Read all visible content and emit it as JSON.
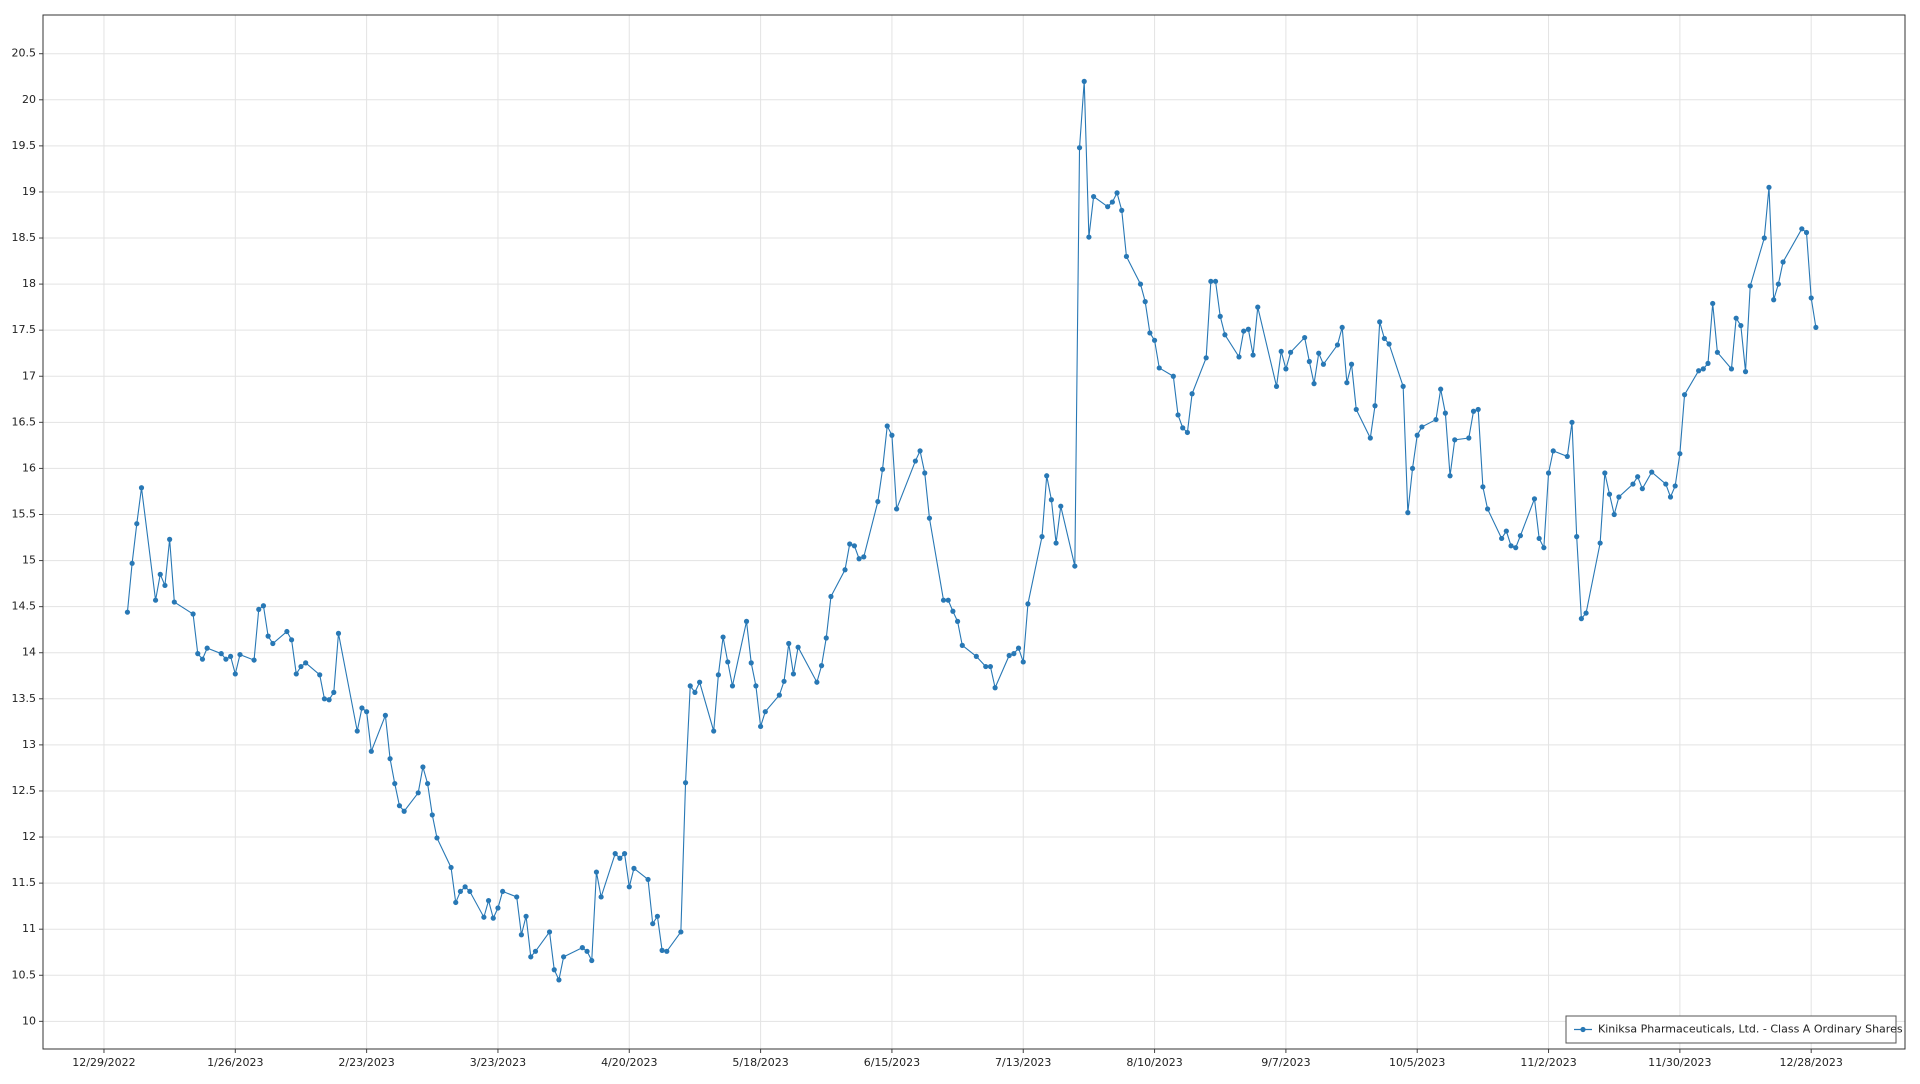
{
  "chart_data": {
    "type": "line",
    "x": [
      "1/3/2023",
      "1/4/2023",
      "1/5/2023",
      "1/6/2023",
      "1/9/2023",
      "1/10/2023",
      "1/11/2023",
      "1/12/2023",
      "1/13/2023",
      "1/17/2023",
      "1/18/2023",
      "1/19/2023",
      "1/20/2023",
      "1/23/2023",
      "1/24/2023",
      "1/25/2023",
      "1/26/2023",
      "1/27/2023",
      "1/30/2023",
      "1/31/2023",
      "2/1/2023",
      "2/2/2023",
      "2/3/2023",
      "2/6/2023",
      "2/7/2023",
      "2/8/2023",
      "2/9/2023",
      "2/10/2023",
      "2/13/2023",
      "2/14/2023",
      "2/15/2023",
      "2/16/2023",
      "2/17/2023",
      "2/21/2023",
      "2/22/2023",
      "2/23/2023",
      "2/24/2023",
      "2/27/2023",
      "2/28/2023",
      "3/1/2023",
      "3/2/2023",
      "3/3/2023",
      "3/6/2023",
      "3/7/2023",
      "3/8/2023",
      "3/9/2023",
      "3/10/2023",
      "3/13/2023",
      "3/14/2023",
      "3/15/2023",
      "3/16/2023",
      "3/17/2023",
      "3/20/2023",
      "3/21/2023",
      "3/22/2023",
      "3/23/2023",
      "3/24/2023",
      "3/27/2023",
      "3/28/2023",
      "3/29/2023",
      "3/30/2023",
      "3/31/2023",
      "4/3/2023",
      "4/4/2023",
      "4/5/2023",
      "4/6/2023",
      "4/10/2023",
      "4/11/2023",
      "4/12/2023",
      "4/13/2023",
      "4/14/2023",
      "4/17/2023",
      "4/18/2023",
      "4/19/2023",
      "4/20/2023",
      "4/21/2023",
      "4/24/2023",
      "4/25/2023",
      "4/26/2023",
      "4/27/2023",
      "4/28/2023",
      "5/1/2023",
      "5/2/2023",
      "5/3/2023",
      "5/4/2023",
      "5/5/2023",
      "5/8/2023",
      "5/9/2023",
      "5/10/2023",
      "5/11/2023",
      "5/12/2023",
      "5/15/2023",
      "5/16/2023",
      "5/17/2023",
      "5/18/2023",
      "5/19/2023",
      "5/22/2023",
      "5/23/2023",
      "5/24/2023",
      "5/25/2023",
      "5/26/2023",
      "5/30/2023",
      "5/31/2023",
      "6/1/2023",
      "6/2/2023",
      "6/5/2023",
      "6/6/2023",
      "6/7/2023",
      "6/8/2023",
      "6/9/2023",
      "6/12/2023",
      "6/13/2023",
      "6/14/2023",
      "6/15/2023",
      "6/16/2023",
      "6/20/2023",
      "6/21/2023",
      "6/22/2023",
      "6/23/2023",
      "6/26/2023",
      "6/27/2023",
      "6/28/2023",
      "6/29/2023",
      "6/30/2023",
      "7/3/2023",
      "7/5/2023",
      "7/6/2023",
      "7/7/2023",
      "7/10/2023",
      "7/11/2023",
      "7/12/2023",
      "7/13/2023",
      "7/14/2023",
      "7/17/2023",
      "7/18/2023",
      "7/19/2023",
      "7/20/2023",
      "7/21/2023",
      "7/24/2023",
      "7/25/2023",
      "7/26/2023",
      "7/27/2023",
      "7/28/2023",
      "7/31/2023",
      "8/1/2023",
      "8/2/2023",
      "8/3/2023",
      "8/4/2023",
      "8/7/2023",
      "8/8/2023",
      "8/9/2023",
      "8/10/2023",
      "8/11/2023",
      "8/14/2023",
      "8/15/2023",
      "8/16/2023",
      "8/17/2023",
      "8/18/2023",
      "8/21/2023",
      "8/22/2023",
      "8/23/2023",
      "8/24/2023",
      "8/25/2023",
      "8/28/2023",
      "8/29/2023",
      "8/30/2023",
      "8/31/2023",
      "9/1/2023",
      "9/5/2023",
      "9/6/2023",
      "9/7/2023",
      "9/8/2023",
      "9/11/2023",
      "9/12/2023",
      "9/13/2023",
      "9/14/2023",
      "9/15/2023",
      "9/18/2023",
      "9/19/2023",
      "9/20/2023",
      "9/21/2023",
      "9/22/2023",
      "9/25/2023",
      "9/26/2023",
      "9/27/2023",
      "9/28/2023",
      "9/29/2023",
      "10/2/2023",
      "10/3/2023",
      "10/4/2023",
      "10/5/2023",
      "10/6/2023",
      "10/9/2023",
      "10/10/2023",
      "10/11/2023",
      "10/12/2023",
      "10/13/2023",
      "10/16/2023",
      "10/17/2023",
      "10/18/2023",
      "10/19/2023",
      "10/20/2023",
      "10/23/2023",
      "10/24/2023",
      "10/25/2023",
      "10/26/2023",
      "10/27/2023",
      "10/30/2023",
      "10/31/2023",
      "11/1/2023",
      "11/2/2023",
      "11/3/2023",
      "11/6/2023",
      "11/7/2023",
      "11/8/2023",
      "11/9/2023",
      "11/10/2023",
      "11/13/2023",
      "11/14/2023",
      "11/15/2023",
      "11/16/2023",
      "11/17/2023",
      "11/20/2023",
      "11/21/2023",
      "11/22/2023",
      "11/24/2023",
      "11/27/2023",
      "11/28/2023",
      "11/29/2023",
      "11/30/2023",
      "12/1/2023",
      "12/4/2023",
      "12/5/2023",
      "12/6/2023",
      "12/7/2023",
      "12/8/2023",
      "12/11/2023",
      "12/12/2023",
      "12/13/2023",
      "12/14/2023",
      "12/15/2023",
      "12/18/2023",
      "12/19/2023",
      "12/20/2023",
      "12/21/2023",
      "12/22/2023",
      "12/26/2023",
      "12/27/2023",
      "12/28/2023",
      "12/29/2023"
    ],
    "series": [
      {
        "name": "Kiniksa Pharmaceuticals, Ltd. - Class A Ordinary Shares",
        "color": "#2878b5",
        "values": [
          14.44,
          14.97,
          15.4,
          15.79,
          14.57,
          14.85,
          14.73,
          15.23,
          14.55,
          14.42,
          13.99,
          13.93,
          14.05,
          13.99,
          13.93,
          13.96,
          13.77,
          13.98,
          13.92,
          14.47,
          14.51,
          14.18,
          14.1,
          14.23,
          14.14,
          13.77,
          13.85,
          13.89,
          13.76,
          13.5,
          13.49,
          13.57,
          14.21,
          13.15,
          13.4,
          13.36,
          12.93,
          13.32,
          12.85,
          12.58,
          12.34,
          12.28,
          12.48,
          12.76,
          12.58,
          12.24,
          11.99,
          11.67,
          11.29,
          11.41,
          11.46,
          11.41,
          11.13,
          11.31,
          11.12,
          11.23,
          11.41,
          11.35,
          10.94,
          11.14,
          10.7,
          10.76,
          10.97,
          10.56,
          10.45,
          10.7,
          10.8,
          10.76,
          10.66,
          11.62,
          11.35,
          11.82,
          11.77,
          11.82,
          11.46,
          11.66,
          11.54,
          11.06,
          11.14,
          10.77,
          10.76,
          10.97,
          12.59,
          13.64,
          13.57,
          13.68,
          13.15,
          13.76,
          14.17,
          13.9,
          13.64,
          14.34,
          13.89,
          13.64,
          13.2,
          13.36,
          13.54,
          13.69,
          14.1,
          13.77,
          14.06,
          13.68,
          13.86,
          14.16,
          14.61,
          14.9,
          15.18,
          15.16,
          15.02,
          15.04,
          15.64,
          15.99,
          16.46,
          16.36,
          15.56,
          16.08,
          16.19,
          15.95,
          15.46,
          14.57,
          14.57,
          14.45,
          14.34,
          14.08,
          13.96,
          13.85,
          13.85,
          13.62,
          13.97,
          13.99,
          14.05,
          13.9,
          14.53,
          15.26,
          15.92,
          15.66,
          15.19,
          15.59,
          14.94,
          19.48,
          20.2,
          18.51,
          18.95,
          18.84,
          18.89,
          18.99,
          18.8,
          18.3,
          18.0,
          17.81,
          17.47,
          17.39,
          17.09,
          17.0,
          16.58,
          16.44,
          16.39,
          16.81,
          17.2,
          18.03,
          18.03,
          17.65,
          17.45,
          17.21,
          17.49,
          17.51,
          17.23,
          17.75,
          16.89,
          17.27,
          17.08,
          17.26,
          17.42,
          17.16,
          16.92,
          17.25,
          17.13,
          17.34,
          17.53,
          16.93,
          17.13,
          16.64,
          16.33,
          16.68,
          17.59,
          17.41,
          17.35,
          16.89,
          15.52,
          16.0,
          16.36,
          16.45,
          16.53,
          16.86,
          16.6,
          15.92,
          16.31,
          16.33,
          16.62,
          16.64,
          15.8,
          15.56,
          15.24,
          15.32,
          15.16,
          15.14,
          15.27,
          15.67,
          15.24,
          15.14,
          15.95,
          16.19,
          16.13,
          16.5,
          15.26,
          14.37,
          14.43,
          15.19,
          15.95,
          15.72,
          15.5,
          15.69,
          15.83,
          15.91,
          15.78,
          15.96,
          15.83,
          15.69,
          15.81,
          16.16,
          16.8,
          17.06,
          17.08,
          17.14,
          17.79,
          17.26,
          17.08,
          17.63,
          17.55,
          17.05,
          17.98,
          18.5,
          19.05,
          17.83,
          18.0,
          18.24,
          18.6,
          18.56,
          17.85,
          17.53
        ]
      }
    ],
    "xlim": [
      "12/16/2022",
      "1/17/2024"
    ],
    "xticks": [
      "12/29/2022",
      "1/26/2023",
      "2/23/2023",
      "3/23/2023",
      "4/20/2023",
      "5/18/2023",
      "6/15/2023",
      "7/13/2023",
      "8/10/2023",
      "9/7/2023",
      "10/5/2023",
      "11/2/2023",
      "11/30/2023",
      "12/28/2023"
    ],
    "ylim": [
      9.7,
      20.92
    ],
    "yticks": [
      10,
      10.5,
      11,
      11.5,
      12,
      12.5,
      13,
      13.5,
      14,
      14.5,
      15,
      15.5,
      16,
      16.5,
      17,
      17.5,
      18,
      18.5,
      19,
      19.5,
      20,
      20.5
    ],
    "grid": true,
    "legend": "lower right"
  }
}
